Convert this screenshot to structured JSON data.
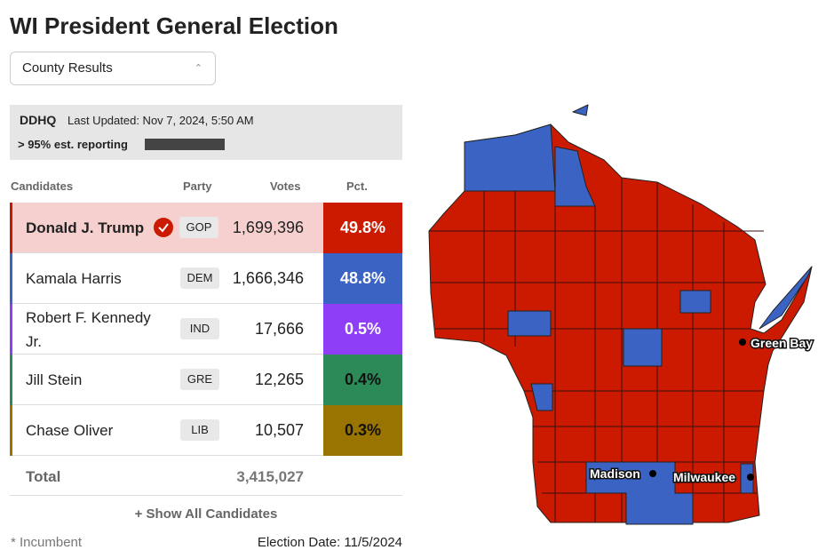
{
  "header": {
    "title": "WI President General Election",
    "dropdown": "County Results"
  },
  "status": {
    "brand": "DDHQ",
    "last_updated": "Last Updated: Nov 7, 2024, 5:50 AM",
    "reporting": "> 95% est. reporting"
  },
  "table": {
    "columns": [
      "Candidates",
      "Party",
      "Votes",
      "Pct."
    ],
    "rows": [
      {
        "name": "Donald J. Trump",
        "party": "GOP",
        "votes": "1,699,396",
        "pct": "49.8%",
        "color": "#cc1a00"
      },
      {
        "name": "Kamala Harris",
        "party": "DEM",
        "votes": "1,666,346",
        "pct": "48.8%",
        "color": "#3a63c4"
      },
      {
        "name": "Robert F. Kennedy Jr.",
        "party": "IND",
        "votes": "17,666",
        "pct": "0.5%",
        "color": "#8f3ef8"
      },
      {
        "name": "Jill Stein",
        "party": "GRE",
        "votes": "12,265",
        "pct": "0.4%",
        "color": "#2b8a57"
      },
      {
        "name": "Chase Oliver",
        "party": "LIB",
        "votes": "10,507",
        "pct": "0.3%",
        "color": "#9a7400"
      }
    ],
    "total_label": "Total",
    "total_votes": "3,415,027"
  },
  "footer": {
    "show_all": "+ Show All Candidates",
    "incumbent": "* Incumbent",
    "election_date": "Election Date: 11/5/2024"
  },
  "map": {
    "cities": [
      "Green Bay",
      "Madison",
      "Milwaukee"
    ]
  }
}
